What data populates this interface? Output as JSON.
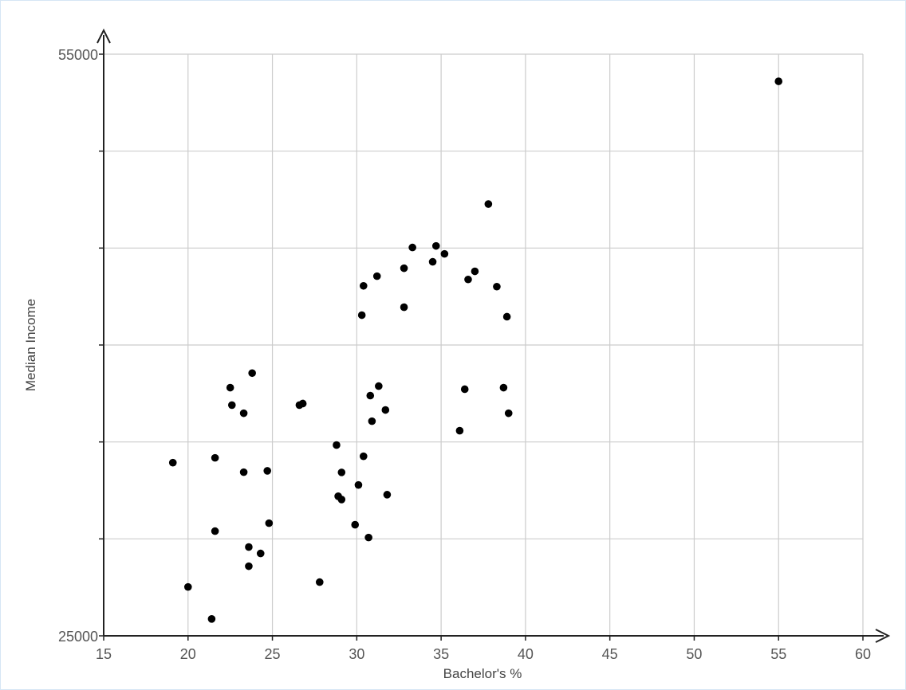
{
  "chart_data": {
    "type": "scatter",
    "title": "",
    "xlabel": "Bachelor's %",
    "ylabel": "Median Income",
    "xlim": [
      15,
      60
    ],
    "ylim": [
      25000,
      55000
    ],
    "x_ticks": [
      15,
      20,
      25,
      30,
      35,
      40,
      45,
      50,
      55,
      60
    ],
    "x_tick_labels": [
      "15",
      "20",
      "25",
      "30",
      "35",
      "40",
      "45",
      "50",
      "55",
      "60"
    ],
    "y_ticks": [
      25000,
      30000,
      35000,
      40000,
      45000,
      50000,
      55000
    ],
    "y_tick_labels": [
      "25000",
      "",
      "",
      "",
      "",
      "",
      "55000"
    ],
    "grid": true,
    "point_color": "#000000",
    "series": [
      {
        "points": [
          [
            55.0,
            53600
          ],
          [
            37.8,
            47270
          ],
          [
            33.3,
            45030
          ],
          [
            34.7,
            45110
          ],
          [
            35.2,
            44700
          ],
          [
            34.5,
            44290
          ],
          [
            32.8,
            43960
          ],
          [
            31.2,
            43550
          ],
          [
            30.4,
            43050
          ],
          [
            37.0,
            43800
          ],
          [
            36.6,
            43380
          ],
          [
            38.3,
            43010
          ],
          [
            32.8,
            41950
          ],
          [
            30.3,
            41540
          ],
          [
            38.9,
            41460
          ],
          [
            23.8,
            38550
          ],
          [
            22.5,
            37800
          ],
          [
            31.3,
            37880
          ],
          [
            30.8,
            37390
          ],
          [
            26.6,
            36900
          ],
          [
            26.8,
            36980
          ],
          [
            22.6,
            36900
          ],
          [
            23.3,
            36480
          ],
          [
            31.7,
            36650
          ],
          [
            30.9,
            36070
          ],
          [
            36.4,
            37720
          ],
          [
            38.7,
            37800
          ],
          [
            39.0,
            36480
          ],
          [
            36.1,
            35580
          ],
          [
            28.8,
            34840
          ],
          [
            21.6,
            34180
          ],
          [
            30.4,
            34260
          ],
          [
            19.1,
            33930
          ],
          [
            23.3,
            33440
          ],
          [
            24.7,
            33510
          ],
          [
            29.1,
            33430
          ],
          [
            30.1,
            32780
          ],
          [
            28.9,
            32200
          ],
          [
            29.1,
            32030
          ],
          [
            31.8,
            32280
          ],
          [
            24.8,
            30810
          ],
          [
            29.9,
            30730
          ],
          [
            21.6,
            30400
          ],
          [
            30.7,
            30070
          ],
          [
            23.6,
            29580
          ],
          [
            24.3,
            29250
          ],
          [
            23.6,
            28590
          ],
          [
            27.8,
            27770
          ],
          [
            20.0,
            27520
          ],
          [
            21.4,
            25870
          ]
        ]
      }
    ]
  }
}
